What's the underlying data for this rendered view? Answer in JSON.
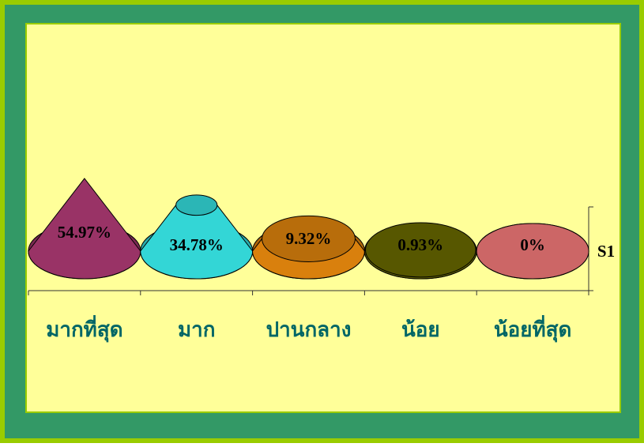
{
  "chart_data": {
    "type": "cone",
    "categories": [
      "มากที่สุด",
      "มาก",
      "ปานกลาง",
      "น้อย",
      "น้อยที่สุด"
    ],
    "series": [
      {
        "name": "S1",
        "colors": [
          "#993366",
          "#33d6d6",
          "#d9800d",
          "#666600",
          "#cc6666"
        ],
        "values": [
          54.97,
          34.78,
          9.32,
          0.93,
          0
        ],
        "value_labels": [
          "54.97%",
          "34.78%",
          "9.32%",
          "0.93%",
          "0%"
        ]
      }
    ]
  }
}
